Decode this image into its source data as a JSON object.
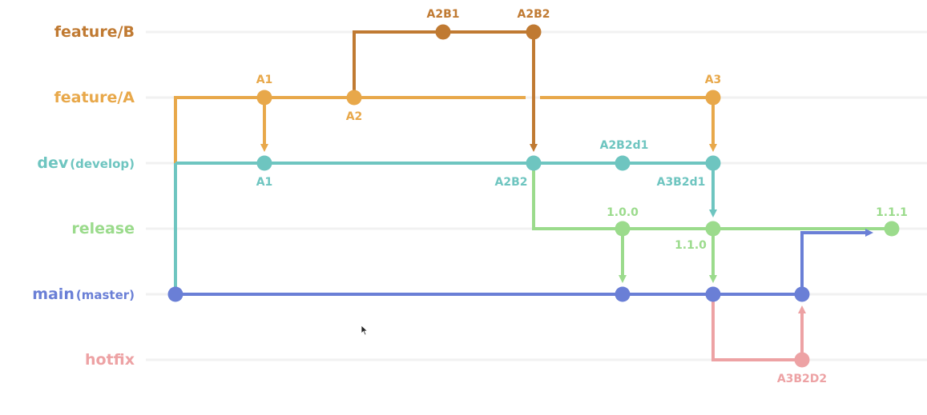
{
  "colors": {
    "feature_b": "#c07a32",
    "feature_a": "#e8a84a",
    "dev": "#6ec5c0",
    "release": "#9bdb8c",
    "main": "#6a7fd6",
    "hotfix": "#eda2a4",
    "guide": "#f1f1f1"
  },
  "branches": {
    "feature_b": {
      "name": "feature/B",
      "alias": ""
    },
    "feature_a": {
      "name": "feature/A",
      "alias": ""
    },
    "dev": {
      "name": "dev",
      "alias": "(develop)"
    },
    "release": {
      "name": "release",
      "alias": ""
    },
    "main": {
      "name": "main",
      "alias": "(master)"
    },
    "hotfix": {
      "name": "hotfix",
      "alias": ""
    }
  },
  "commits": {
    "fb_1": "A2B1",
    "fb_2": "A2B2",
    "fa_1": "A1",
    "fa_2": "A2",
    "fa_3": "A3",
    "dev_1": "A1",
    "dev_2": "A2B2",
    "dev_3": "A2B2d1",
    "dev_4": "A3B2d1",
    "rel_1": "1.0.0",
    "rel_2": "1.1.0",
    "rel_3": "1.1.1",
    "hf_1": "A3B2D2"
  }
}
